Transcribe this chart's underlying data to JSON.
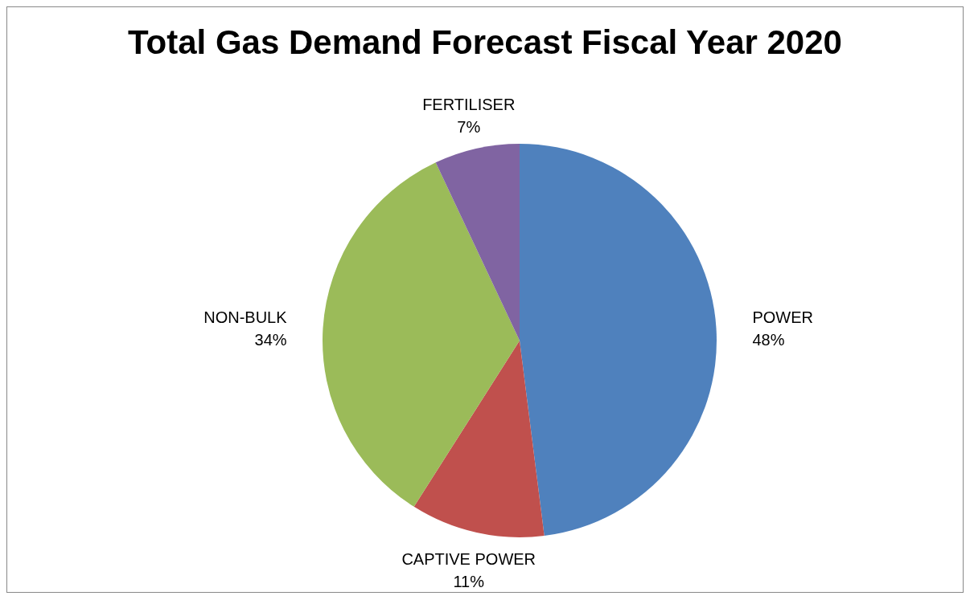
{
  "chart_data": {
    "type": "pie",
    "title": "Total Gas Demand Forecast Fiscal Year 2020",
    "categories": [
      "POWER",
      "CAPTIVE POWER",
      "NON-BULK",
      "FERTILISER"
    ],
    "values": [
      48,
      11,
      34,
      7
    ],
    "colors": [
      "#4f81bd",
      "#c0504d",
      "#9bbb59",
      "#8064a2"
    ],
    "value_labels": [
      "48%",
      "11%",
      "34%",
      "7%"
    ],
    "legend": false
  }
}
